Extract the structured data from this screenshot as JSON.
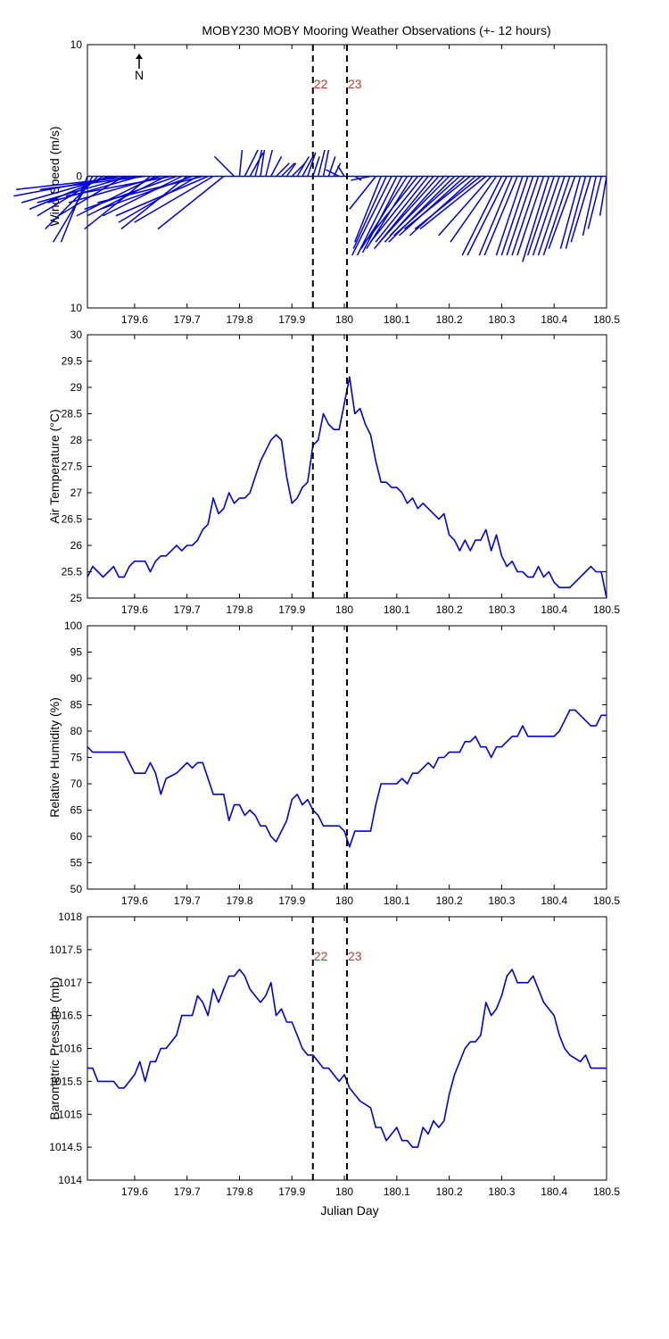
{
  "title": "MOBY230 MOBY Mooring Weather Observations (+- 12 hours)",
  "xlabel": "Julian Day",
  "north_label": "N",
  "colors": {
    "series": "#0000dd",
    "marker_label": "#c0392b",
    "marker_line": "#000000"
  },
  "markers": [
    {
      "x": 179.94,
      "label": "22"
    },
    {
      "x": 180.005,
      "label": "23"
    }
  ],
  "x_ticks": [
    "179.6",
    "179.7",
    "179.8",
    "179.9",
    "180",
    "180.1",
    "180.2",
    "180.3",
    "180.4",
    "180.5"
  ],
  "chart_data": [
    {
      "type": "vector",
      "ylabel": "Wind Speed (m/s)",
      "xlim": [
        179.51,
        180.5
      ],
      "ylim": [
        -10,
        10
      ],
      "ytick_labels": [
        "10",
        "0",
        "10"
      ],
      "ytick_values": [
        10,
        0,
        -10
      ],
      "x": [
        179.51,
        179.52,
        179.53,
        179.54,
        179.55,
        179.56,
        179.57,
        179.58,
        179.59,
        179.6,
        179.61,
        179.62,
        179.63,
        179.64,
        179.65,
        179.66,
        179.67,
        179.68,
        179.69,
        179.7,
        179.71,
        179.72,
        179.73,
        179.74,
        179.75,
        179.77,
        179.79,
        179.8,
        179.81,
        179.82,
        179.83,
        179.84,
        179.85,
        179.86,
        179.87,
        179.88,
        179.89,
        179.9,
        179.91,
        179.92,
        179.93,
        179.94,
        179.95,
        179.96,
        179.97,
        179.98,
        179.99,
        180.0,
        180.02,
        180.05,
        180.06,
        180.07,
        180.08,
        180.09,
        180.1,
        180.11,
        180.12,
        180.13,
        180.14,
        180.15,
        180.16,
        180.17,
        180.18,
        180.19,
        180.2,
        180.21,
        180.22,
        180.23,
        180.24,
        180.25,
        180.26,
        180.27,
        180.28,
        180.29,
        180.3,
        180.31,
        180.32,
        180.33,
        180.34,
        180.35,
        180.36,
        180.37,
        180.38,
        180.39,
        180.4,
        180.41,
        180.42,
        180.43,
        180.44,
        180.45,
        180.46,
        180.47,
        180.48,
        180.49,
        180.5
      ],
      "u": [
        -2,
        -3,
        -4,
        -5,
        -6,
        -7,
        -8,
        -5,
        -7,
        -9,
        -7,
        -8,
        -5,
        -6,
        -7,
        -6,
        -8,
        -7,
        -6,
        -5,
        -7,
        -6,
        -8,
        -7,
        -6,
        -5,
        -1.5,
        0.2,
        1,
        1,
        0.5,
        0.3,
        0.5,
        0.8,
        1,
        1,
        0.7,
        1,
        0.9,
        0.8,
        0.6,
        0.5,
        0.5,
        0.4,
        0.5,
        0.5,
        -1,
        -0.5,
        0.5,
        -1.5,
        -2,
        -2,
        -2.5,
        -3,
        -3,
        -3,
        -3.5,
        -3.5,
        -4,
        -4,
        -4,
        -4.5,
        -4.5,
        -4.5,
        -4.5,
        -5,
        -5,
        -5,
        -5,
        -5,
        -5,
        -5,
        -4,
        -3.5,
        -3,
        -3,
        -2.5,
        -2.5,
        -2,
        -2,
        -2,
        -2,
        -2,
        -2,
        -2,
        -2,
        -2,
        -2,
        -2,
        -1.5,
        -1.5,
        -1.5,
        -1,
        -1,
        -0.5
      ],
      "v": [
        -5,
        -5,
        -4,
        -3,
        -2.5,
        -2,
        -1.5,
        -3,
        -2,
        -1,
        -2,
        -1,
        -4,
        -3,
        -2,
        -3,
        -1.5,
        -2.5,
        -3,
        -4,
        -2.5,
        -3.5,
        -2,
        -3,
        -3.5,
        -4,
        1.5,
        2,
        2,
        1.8,
        2,
        2,
        2,
        1.5,
        1,
        1,
        1,
        1,
        1.5,
        1.5,
        1.8,
        1.5,
        2,
        2,
        1.5,
        1,
        0.5,
        0.8,
        -0.3,
        -0.3,
        -2.5,
        -5,
        -5.5,
        -6,
        -6,
        -5.8,
        -5.5,
        -5.5,
        -5,
        -5,
        -5,
        -5.5,
        -5,
        -5,
        -4.5,
        -5,
        -4.5,
        -4.5,
        -4,
        -4.5,
        -4,
        -4,
        -4.5,
        -5,
        -6,
        -6,
        -6,
        -6,
        -6,
        -6,
        -6,
        -6,
        -6,
        -6.5,
        -6,
        -6,
        -6,
        -6,
        -5.5,
        -5.5,
        -5.5,
        -5,
        -4.5,
        -4,
        -3
      ]
    },
    {
      "type": "line",
      "ylabel": "Air Temperature (°C)",
      "xlim": [
        179.51,
        180.5
      ],
      "ylim": [
        25,
        30
      ],
      "ytick_labels": [
        "25",
        "25.5",
        "26",
        "26.5",
        "27",
        "27.5",
        "28",
        "28.5",
        "29",
        "29.5",
        "30"
      ],
      "ytick_values": [
        25,
        25.5,
        26,
        26.5,
        27,
        27.5,
        28,
        28.5,
        29,
        29.5,
        30
      ],
      "x": [
        179.51,
        179.52,
        179.53,
        179.54,
        179.55,
        179.56,
        179.57,
        179.58,
        179.59,
        179.6,
        179.61,
        179.62,
        179.63,
        179.64,
        179.65,
        179.66,
        179.67,
        179.68,
        179.69,
        179.7,
        179.71,
        179.72,
        179.73,
        179.74,
        179.75,
        179.76,
        179.77,
        179.78,
        179.79,
        179.8,
        179.81,
        179.82,
        179.83,
        179.84,
        179.85,
        179.86,
        179.87,
        179.88,
        179.89,
        179.9,
        179.91,
        179.92,
        179.93,
        179.94,
        179.95,
        179.96,
        179.97,
        179.98,
        179.99,
        180.0,
        180.01,
        180.02,
        180.03,
        180.04,
        180.05,
        180.06,
        180.07,
        180.08,
        180.09,
        180.1,
        180.11,
        180.12,
        180.13,
        180.14,
        180.15,
        180.16,
        180.17,
        180.18,
        180.19,
        180.2,
        180.21,
        180.22,
        180.23,
        180.24,
        180.25,
        180.26,
        180.27,
        180.28,
        180.29,
        180.3,
        180.31,
        180.32,
        180.33,
        180.34,
        180.35,
        180.36,
        180.37,
        180.38,
        180.39,
        180.4,
        180.41,
        180.42,
        180.43,
        180.44,
        180.45,
        180.46,
        180.47,
        180.48,
        180.49,
        180.5
      ],
      "y": [
        25.4,
        25.6,
        25.5,
        25.4,
        25.5,
        25.6,
        25.4,
        25.4,
        25.6,
        25.7,
        25.7,
        25.7,
        25.5,
        25.7,
        25.8,
        25.8,
        25.9,
        26.0,
        25.9,
        26.0,
        26.0,
        26.1,
        26.3,
        26.4,
        26.9,
        26.6,
        26.7,
        27.0,
        26.8,
        26.9,
        26.9,
        27.0,
        27.3,
        27.6,
        27.8,
        28.0,
        28.1,
        28.0,
        27.3,
        26.8,
        26.9,
        27.1,
        27.2,
        27.9,
        28.0,
        28.5,
        28.3,
        28.2,
        28.2,
        28.7,
        29.2,
        28.5,
        28.6,
        28.3,
        28.1,
        27.6,
        27.2,
        27.2,
        27.1,
        27.1,
        27.0,
        26.8,
        26.9,
        26.7,
        26.8,
        26.7,
        26.6,
        26.5,
        26.6,
        26.2,
        26.1,
        25.9,
        26.1,
        25.9,
        26.1,
        26.1,
        26.3,
        25.9,
        26.2,
        25.8,
        25.6,
        25.7,
        25.5,
        25.5,
        25.4,
        25.4,
        25.6,
        25.4,
        25.5,
        25.3,
        25.2,
        25.2,
        25.2,
        25.3,
        25.4,
        25.5,
        25.6,
        25.5,
        25.5,
        25.0
      ]
    },
    {
      "type": "line",
      "ylabel": "Relative Humidity (%)",
      "xlim": [
        179.51,
        180.5
      ],
      "ylim": [
        50,
        100
      ],
      "ytick_labels": [
        "50",
        "55",
        "60",
        "65",
        "70",
        "75",
        "80",
        "85",
        "90",
        "95",
        "100"
      ],
      "ytick_values": [
        50,
        55,
        60,
        65,
        70,
        75,
        80,
        85,
        90,
        95,
        100
      ],
      "x": [
        179.51,
        179.52,
        179.53,
        179.54,
        179.55,
        179.56,
        179.57,
        179.58,
        179.59,
        179.6,
        179.61,
        179.62,
        179.63,
        179.64,
        179.65,
        179.66,
        179.67,
        179.68,
        179.69,
        179.7,
        179.71,
        179.72,
        179.73,
        179.74,
        179.75,
        179.76,
        179.77,
        179.78,
        179.79,
        179.8,
        179.81,
        179.82,
        179.83,
        179.84,
        179.85,
        179.86,
        179.87,
        179.88,
        179.89,
        179.9,
        179.91,
        179.92,
        179.93,
        179.94,
        179.95,
        179.96,
        179.97,
        179.98,
        179.99,
        180.0,
        180.01,
        180.02,
        180.03,
        180.04,
        180.05,
        180.06,
        180.07,
        180.08,
        180.09,
        180.1,
        180.11,
        180.12,
        180.13,
        180.14,
        180.15,
        180.16,
        180.17,
        180.18,
        180.19,
        180.2,
        180.21,
        180.22,
        180.23,
        180.24,
        180.25,
        180.26,
        180.27,
        180.28,
        180.29,
        180.3,
        180.31,
        180.32,
        180.33,
        180.34,
        180.35,
        180.36,
        180.37,
        180.38,
        180.39,
        180.4,
        180.41,
        180.42,
        180.43,
        180.44,
        180.45,
        180.46,
        180.47,
        180.48,
        180.49,
        180.5
      ],
      "y": [
        77,
        76,
        76,
        76,
        76,
        76,
        76,
        76,
        74,
        72,
        72,
        72,
        74,
        72,
        68,
        71,
        71.5,
        72,
        73,
        74,
        73,
        74,
        74,
        71,
        68,
        68,
        68,
        63,
        66,
        66,
        64,
        65,
        64,
        62,
        62,
        60,
        59,
        61,
        63,
        67,
        68,
        66,
        67,
        65,
        64,
        62,
        62,
        62,
        62,
        61,
        58,
        61,
        61,
        61,
        61,
        66,
        70,
        70,
        70,
        70,
        71,
        70,
        72,
        72,
        73,
        74,
        73,
        75,
        75,
        76,
        76,
        76,
        78,
        78,
        79,
        77,
        77,
        75,
        77,
        77,
        78,
        79,
        79,
        81,
        79,
        79,
        79,
        79,
        79,
        79,
        80,
        82,
        84,
        84,
        83,
        82,
        81,
        81,
        83,
        83
      ]
    },
    {
      "type": "line",
      "ylabel": "Barometric Pressure (mb)",
      "xlim": [
        179.51,
        180.5
      ],
      "ylim": [
        1014,
        1018
      ],
      "ytick_labels": [
        "1014",
        "1014.5",
        "1015",
        "1015.5",
        "1016",
        "1016.5",
        "1017",
        "1017.5",
        "1018"
      ],
      "ytick_values": [
        1014,
        1014.5,
        1015,
        1015.5,
        1016,
        1016.5,
        1017,
        1017.5,
        1018
      ],
      "x": [
        179.51,
        179.52,
        179.53,
        179.54,
        179.55,
        179.56,
        179.57,
        179.58,
        179.59,
        179.6,
        179.61,
        179.62,
        179.63,
        179.64,
        179.65,
        179.66,
        179.67,
        179.68,
        179.69,
        179.7,
        179.71,
        179.72,
        179.73,
        179.74,
        179.75,
        179.76,
        179.77,
        179.78,
        179.79,
        179.8,
        179.81,
        179.82,
        179.83,
        179.84,
        179.85,
        179.86,
        179.87,
        179.88,
        179.89,
        179.9,
        179.91,
        179.92,
        179.93,
        179.94,
        179.95,
        179.96,
        179.97,
        179.98,
        179.99,
        180.0,
        180.01,
        180.02,
        180.03,
        180.04,
        180.05,
        180.06,
        180.07,
        180.08,
        180.09,
        180.1,
        180.11,
        180.12,
        180.13,
        180.14,
        180.15,
        180.16,
        180.17,
        180.18,
        180.19,
        180.2,
        180.21,
        180.22,
        180.23,
        180.24,
        180.25,
        180.26,
        180.27,
        180.28,
        180.29,
        180.3,
        180.31,
        180.32,
        180.33,
        180.34,
        180.35,
        180.36,
        180.37,
        180.38,
        180.39,
        180.4,
        180.41,
        180.42,
        180.43,
        180.44,
        180.45,
        180.46,
        180.47,
        180.48,
        180.49,
        180.5
      ],
      "y": [
        1015.7,
        1015.7,
        1015.5,
        1015.5,
        1015.5,
        1015.5,
        1015.4,
        1015.4,
        1015.5,
        1015.6,
        1015.8,
        1015.5,
        1015.8,
        1015.8,
        1016.0,
        1016.0,
        1016.1,
        1016.2,
        1016.5,
        1016.5,
        1016.5,
        1016.8,
        1016.7,
        1016.5,
        1016.9,
        1016.7,
        1016.9,
        1017.1,
        1017.1,
        1017.2,
        1017.1,
        1016.9,
        1016.8,
        1016.7,
        1016.8,
        1017.0,
        1016.5,
        1016.6,
        1016.4,
        1016.4,
        1016.2,
        1016.0,
        1015.9,
        1015.9,
        1015.8,
        1015.7,
        1015.7,
        1015.6,
        1015.5,
        1015.6,
        1015.4,
        1015.3,
        1015.2,
        1015.15,
        1015.1,
        1014.8,
        1014.8,
        1014.6,
        1014.7,
        1014.8,
        1014.6,
        1014.6,
        1014.5,
        1014.5,
        1014.8,
        1014.7,
        1014.9,
        1014.8,
        1014.9,
        1015.3,
        1015.6,
        1015.8,
        1016.0,
        1016.1,
        1016.1,
        1016.2,
        1016.7,
        1016.5,
        1016.6,
        1016.8,
        1017.1,
        1017.2,
        1017.0,
        1017.0,
        1017.0,
        1017.1,
        1016.9,
        1016.7,
        1016.6,
        1016.5,
        1016.2,
        1016.0,
        1015.9,
        1015.85,
        1015.8,
        1015.9,
        1015.7,
        1015.7,
        1015.7,
        1015.7
      ]
    }
  ]
}
